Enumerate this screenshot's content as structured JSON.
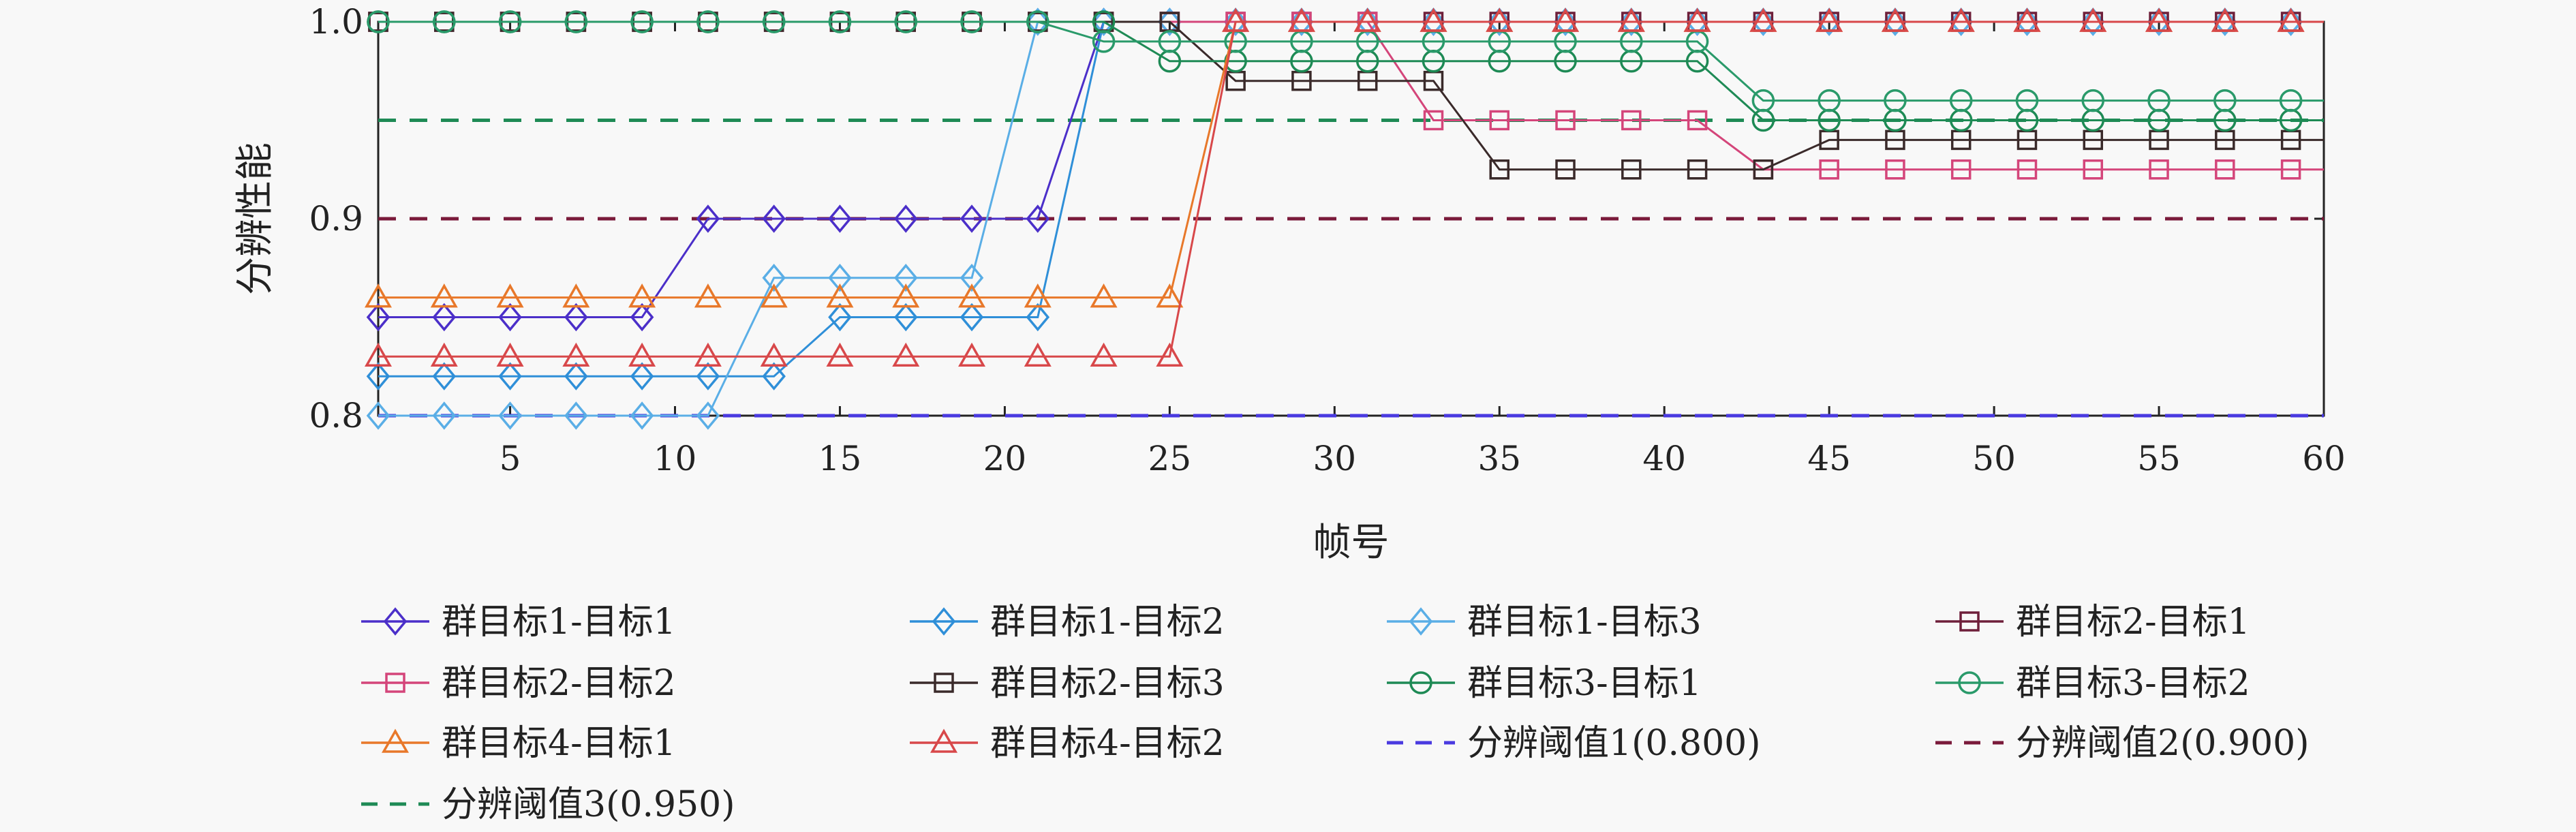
{
  "chart_data": {
    "type": "line",
    "xlabel": "帧号",
    "ylabel": "分辨性能",
    "xlim": [
      1,
      60
    ],
    "ylim": [
      0.8,
      1.0
    ],
    "xticks": [
      5,
      10,
      15,
      20,
      25,
      30,
      35,
      40,
      45,
      50,
      55,
      60
    ],
    "yticks": [
      0.8,
      0.9,
      1.0
    ],
    "ytick_labels": [
      "0.8",
      "0.9",
      "1.0"
    ],
    "grid": false,
    "legend_placement": "bottom",
    "x": [
      1,
      3,
      5,
      7,
      9,
      11,
      13,
      15,
      17,
      19,
      21,
      23,
      25,
      27,
      29,
      31,
      33,
      35,
      37,
      39,
      41,
      43,
      45,
      47,
      49,
      51,
      53,
      55,
      57,
      59,
      60
    ],
    "series": [
      {
        "name": "群目标1-目标1",
        "color": "#4b2fc9",
        "marker": "diamond",
        "values": [
          0.85,
          0.85,
          0.85,
          0.85,
          0.85,
          0.9,
          0.9,
          0.9,
          0.9,
          0.9,
          0.9,
          1.0,
          1.0,
          1.0,
          1.0,
          1.0,
          1.0,
          1.0,
          1.0,
          1.0,
          1.0,
          1.0,
          1.0,
          1.0,
          1.0,
          1.0,
          1.0,
          1.0,
          1.0,
          1.0,
          1.0
        ]
      },
      {
        "name": "群目标1-目标2",
        "color": "#2f8fd8",
        "marker": "diamond",
        "values": [
          0.82,
          0.82,
          0.82,
          0.82,
          0.82,
          0.82,
          0.82,
          0.85,
          0.85,
          0.85,
          0.85,
          1.0,
          1.0,
          1.0,
          1.0,
          1.0,
          1.0,
          1.0,
          1.0,
          1.0,
          1.0,
          1.0,
          1.0,
          1.0,
          1.0,
          1.0,
          1.0,
          1.0,
          1.0,
          1.0,
          1.0
        ]
      },
      {
        "name": "群目标1-目标3",
        "color": "#5aaee6",
        "marker": "diamond",
        "values": [
          0.8,
          0.8,
          0.8,
          0.8,
          0.8,
          0.8,
          0.87,
          0.87,
          0.87,
          0.87,
          1.0,
          1.0,
          1.0,
          1.0,
          1.0,
          1.0,
          1.0,
          1.0,
          1.0,
          1.0,
          1.0,
          1.0,
          1.0,
          1.0,
          1.0,
          1.0,
          1.0,
          1.0,
          1.0,
          1.0,
          1.0
        ]
      },
      {
        "name": "群目标2-目标1",
        "color": "#6e1f3a",
        "marker": "square",
        "values": [
          1.0,
          1.0,
          1.0,
          1.0,
          1.0,
          1.0,
          1.0,
          1.0,
          1.0,
          1.0,
          1.0,
          1.0,
          1.0,
          1.0,
          1.0,
          1.0,
          1.0,
          1.0,
          1.0,
          1.0,
          1.0,
          1.0,
          1.0,
          1.0,
          1.0,
          1.0,
          1.0,
          1.0,
          1.0,
          1.0,
          1.0
        ]
      },
      {
        "name": "群目标2-目标2",
        "color": "#d4457a",
        "marker": "square",
        "values": [
          1.0,
          1.0,
          1.0,
          1.0,
          1.0,
          1.0,
          1.0,
          1.0,
          1.0,
          1.0,
          1.0,
          1.0,
          1.0,
          1.0,
          1.0,
          1.0,
          0.95,
          0.95,
          0.95,
          0.95,
          0.95,
          0.925,
          0.925,
          0.925,
          0.925,
          0.925,
          0.925,
          0.925,
          0.925,
          0.925,
          0.925
        ]
      },
      {
        "name": "群目标2-目标3",
        "color": "#3a2a2a",
        "marker": "square",
        "values": [
          1.0,
          1.0,
          1.0,
          1.0,
          1.0,
          1.0,
          1.0,
          1.0,
          1.0,
          1.0,
          1.0,
          1.0,
          1.0,
          0.97,
          0.97,
          0.97,
          0.97,
          0.925,
          0.925,
          0.925,
          0.925,
          0.925,
          0.94,
          0.94,
          0.94,
          0.94,
          0.94,
          0.94,
          0.94,
          0.94,
          0.94
        ]
      },
      {
        "name": "群目标3-目标1",
        "color": "#1e8a55",
        "marker": "circle",
        "values": [
          1.0,
          1.0,
          1.0,
          1.0,
          1.0,
          1.0,
          1.0,
          1.0,
          1.0,
          1.0,
          1.0,
          1.0,
          0.98,
          0.98,
          0.98,
          0.98,
          0.98,
          0.98,
          0.98,
          0.98,
          0.98,
          0.95,
          0.95,
          0.95,
          0.95,
          0.95,
          0.95,
          0.95,
          0.95,
          0.95,
          0.95
        ]
      },
      {
        "name": "群目标3-目标2",
        "color": "#2a9a6a",
        "marker": "circle",
        "values": [
          1.0,
          1.0,
          1.0,
          1.0,
          1.0,
          1.0,
          1.0,
          1.0,
          1.0,
          1.0,
          1.0,
          0.99,
          0.99,
          0.99,
          0.99,
          0.99,
          0.99,
          0.99,
          0.99,
          0.99,
          0.99,
          0.96,
          0.96,
          0.96,
          0.96,
          0.96,
          0.96,
          0.96,
          0.96,
          0.96,
          0.96
        ]
      },
      {
        "name": "群目标4-目标1",
        "color": "#e8782a",
        "marker": "triangle",
        "values": [
          0.86,
          0.86,
          0.86,
          0.86,
          0.86,
          0.86,
          0.86,
          0.86,
          0.86,
          0.86,
          0.86,
          0.86,
          0.86,
          1.0,
          1.0,
          1.0,
          1.0,
          1.0,
          1.0,
          1.0,
          1.0,
          1.0,
          1.0,
          1.0,
          1.0,
          1.0,
          1.0,
          1.0,
          1.0,
          1.0,
          1.0
        ]
      },
      {
        "name": "群目标4-目标2",
        "color": "#d8484a",
        "marker": "triangle",
        "values": [
          0.83,
          0.83,
          0.83,
          0.83,
          0.83,
          0.83,
          0.83,
          0.83,
          0.83,
          0.83,
          0.83,
          0.83,
          0.83,
          1.0,
          1.0,
          1.0,
          1.0,
          1.0,
          1.0,
          1.0,
          1.0,
          1.0,
          1.0,
          1.0,
          1.0,
          1.0,
          1.0,
          1.0,
          1.0,
          1.0,
          1.0
        ]
      }
    ],
    "thresholds": [
      {
        "name": "分辨阈值1(0.800)",
        "value": 0.8,
        "color": "#4a3ae0"
      },
      {
        "name": "分辨阈值2(0.900)",
        "value": 0.9,
        "color": "#7a1a3a"
      },
      {
        "name": "分辨阈值3(0.950)",
        "value": 0.95,
        "color": "#1e8a55"
      }
    ]
  }
}
